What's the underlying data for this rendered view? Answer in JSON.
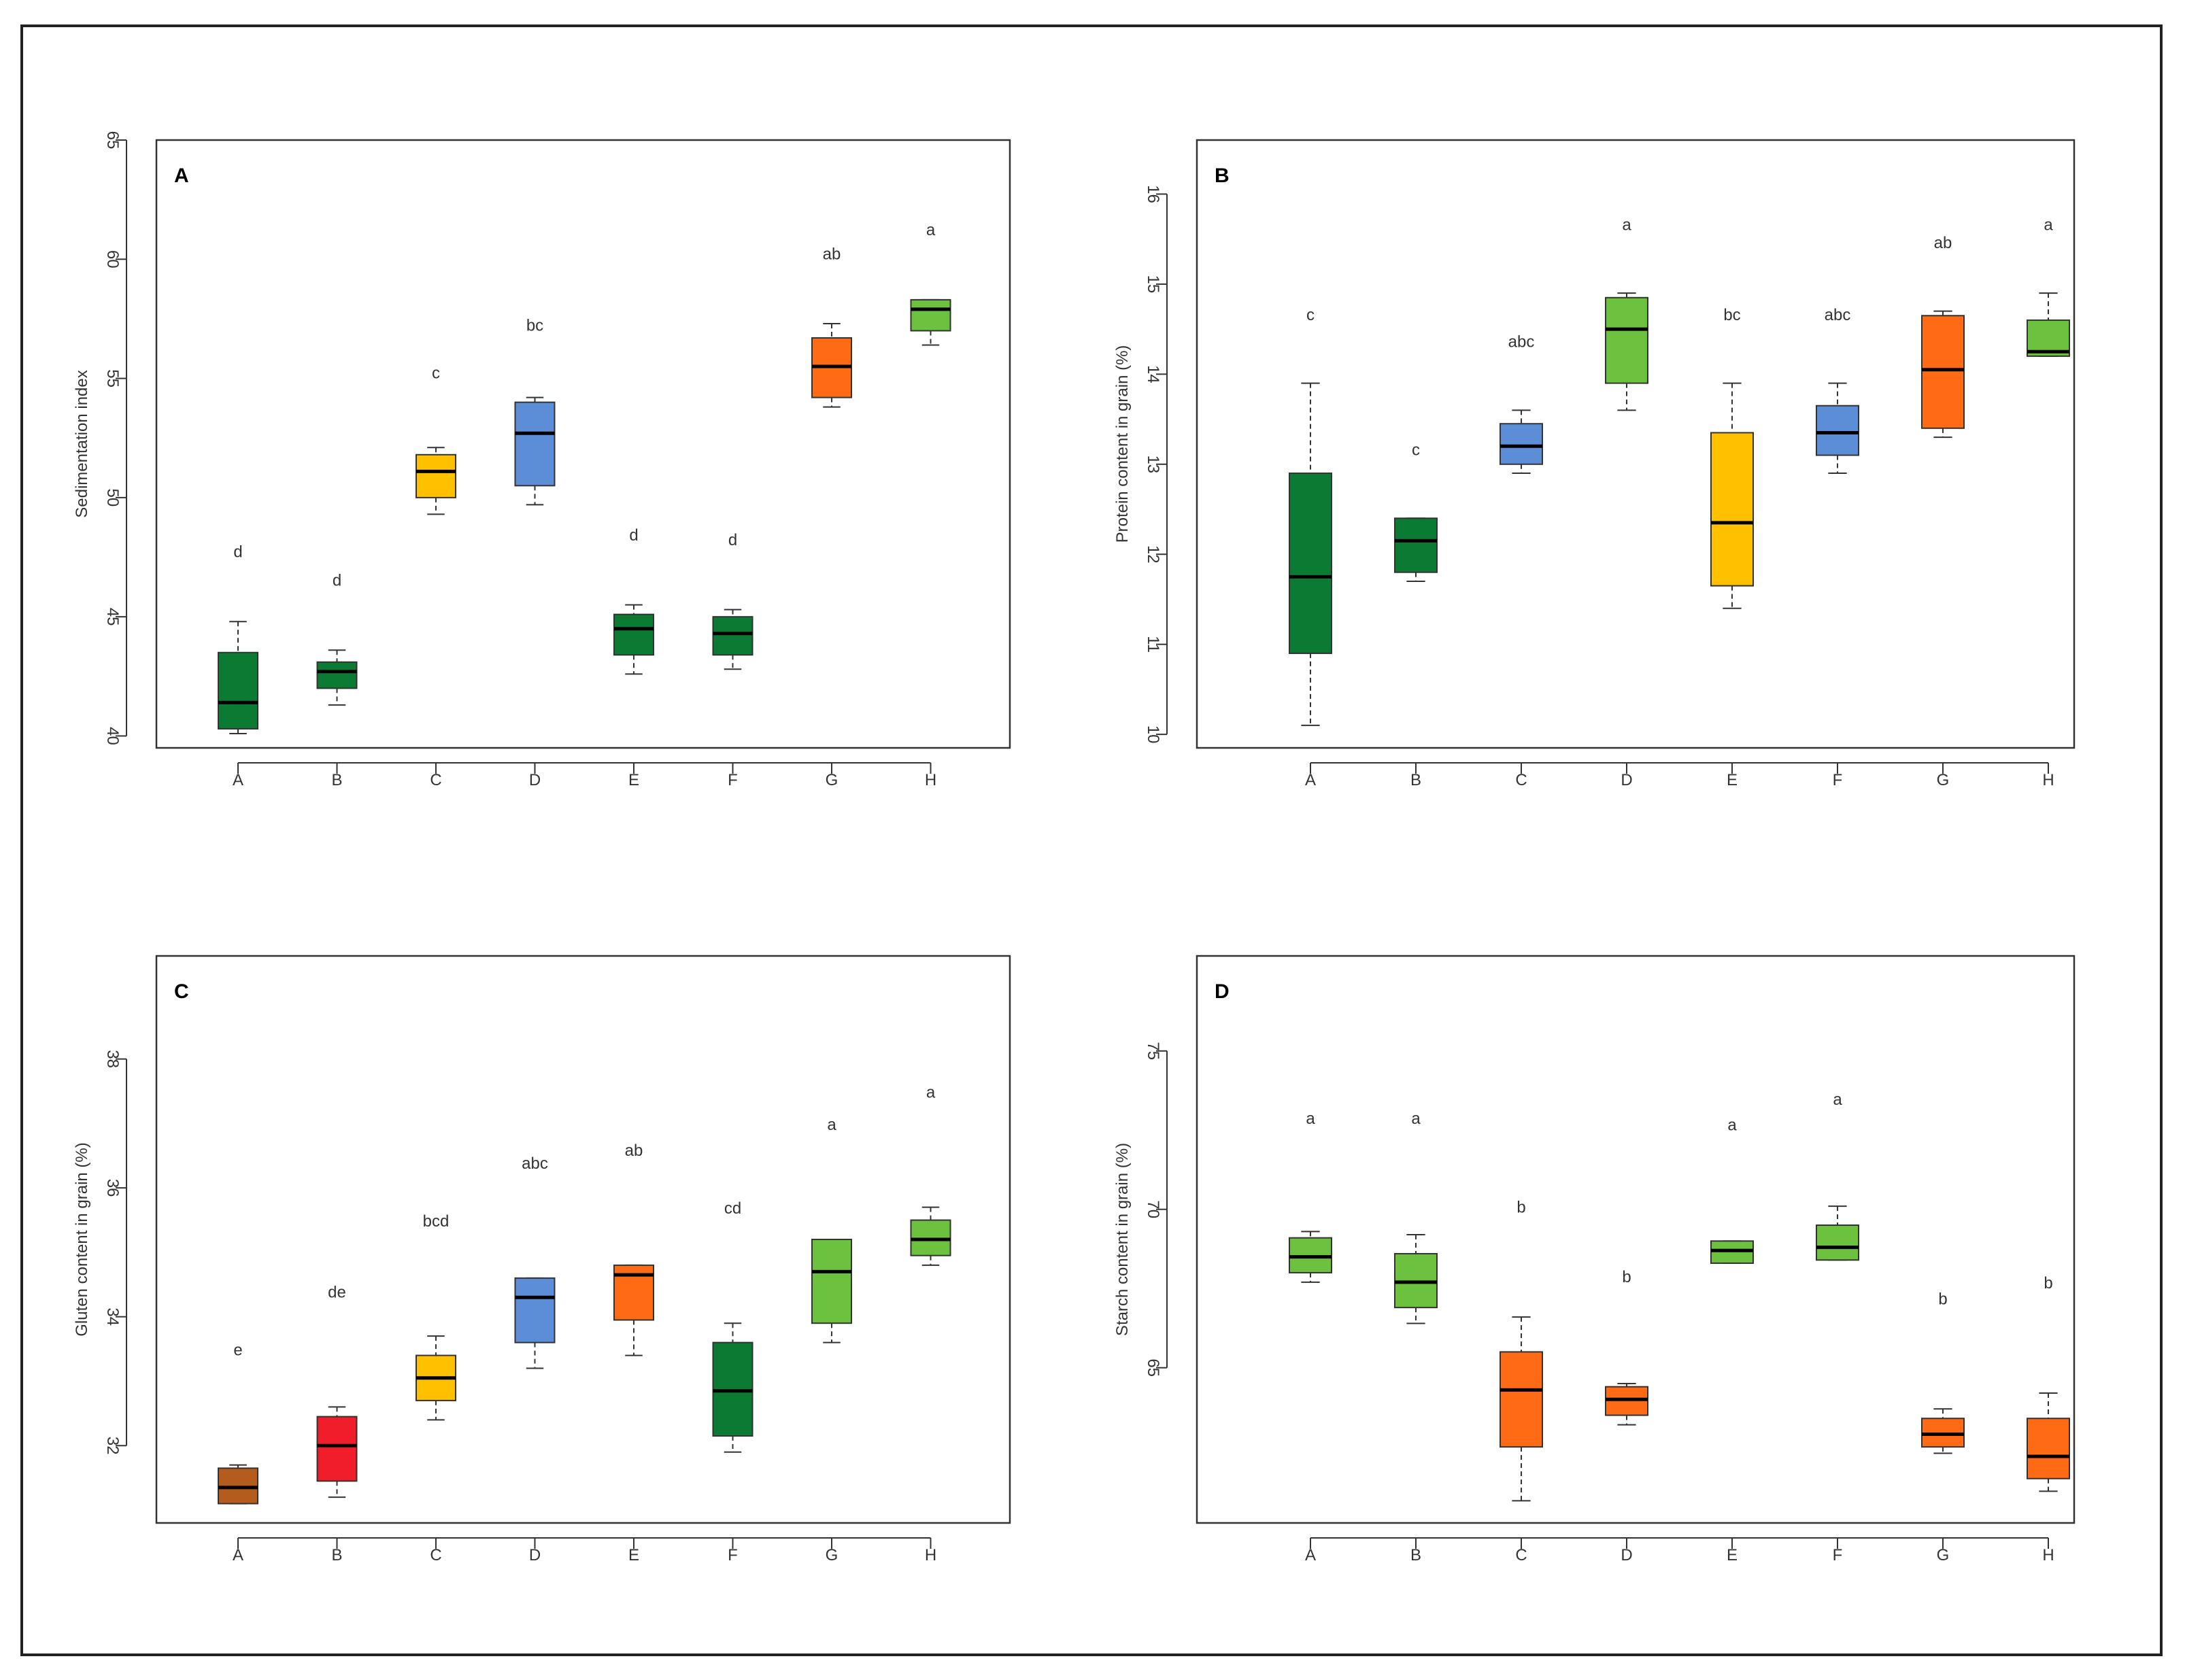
{
  "colors": {
    "dark_green": "#0b7a32",
    "light_green": "#6cc13e",
    "yellow": "#ffc000",
    "blue": "#5b8ed6",
    "orange": "#ff6a14",
    "red": "#f21d2a",
    "brown": "#b35c1e"
  },
  "chart_data": [
    {
      "type": "box",
      "panel_label": "A",
      "ylabel": "Sedimentation index",
      "xlabel": "",
      "ylim": [
        39.5,
        65
      ],
      "yticks": [
        40,
        45,
        50,
        55,
        60,
        65
      ],
      "categories": [
        "A",
        "B",
        "C",
        "D",
        "E",
        "F",
        "G",
        "H"
      ],
      "boxes": [
        {
          "min": 40.1,
          "q1": 40.3,
          "median": 41.4,
          "q3": 43.5,
          "max": 44.8,
          "color": "dark_green",
          "letter": "d"
        },
        {
          "min": 41.3,
          "q1": 42.0,
          "median": 42.7,
          "q3": 43.1,
          "max": 43.6,
          "color": "dark_green",
          "letter": "d"
        },
        {
          "min": 49.3,
          "q1": 50.0,
          "median": 51.1,
          "q3": 51.8,
          "max": 52.1,
          "color": "yellow",
          "letter": "c"
        },
        {
          "min": 49.7,
          "q1": 50.5,
          "median": 52.7,
          "q3": 54.0,
          "max": 54.2,
          "color": "blue",
          "letter": "bc"
        },
        {
          "min": 42.6,
          "q1": 43.4,
          "median": 44.5,
          "q3": 45.1,
          "max": 45.5,
          "color": "dark_green",
          "letter": "d"
        },
        {
          "min": 42.8,
          "q1": 43.4,
          "median": 44.3,
          "q3": 45.0,
          "max": 45.3,
          "color": "dark_green",
          "letter": "d"
        },
        {
          "min": 53.8,
          "q1": 54.2,
          "median": 55.5,
          "q3": 56.7,
          "max": 57.3,
          "color": "orange",
          "letter": "ab"
        },
        {
          "min": 56.4,
          "q1": 57.0,
          "median": 57.9,
          "q3": 58.3,
          "max": 58.3,
          "color": "light_green",
          "letter": "a"
        }
      ],
      "letter_y": [
        47.5,
        46.3,
        55.0,
        57.0,
        48.2,
        48.0,
        60.0,
        61.0
      ]
    },
    {
      "type": "box",
      "panel_label": "B",
      "ylabel": "Protein content in grain (%)",
      "xlabel": "",
      "ylim": [
        9.85,
        16.6
      ],
      "yticks": [
        10,
        11,
        12,
        13,
        14,
        15,
        16
      ],
      "categories": [
        "A",
        "B",
        "C",
        "D",
        "E",
        "F",
        "G",
        "H"
      ],
      "boxes": [
        {
          "min": 10.1,
          "q1": 10.9,
          "median": 11.75,
          "q3": 12.9,
          "max": 13.9,
          "color": "dark_green",
          "letter": "c"
        },
        {
          "min": 11.7,
          "q1": 11.8,
          "median": 12.15,
          "q3": 12.4,
          "max": 12.4,
          "color": "dark_green",
          "letter": "c"
        },
        {
          "min": 12.9,
          "q1": 13.0,
          "median": 13.2,
          "q3": 13.45,
          "max": 13.6,
          "color": "blue",
          "letter": "abc"
        },
        {
          "min": 13.6,
          "q1": 13.9,
          "median": 14.5,
          "q3": 14.85,
          "max": 14.9,
          "color": "light_green",
          "letter": "a"
        },
        {
          "min": 11.4,
          "q1": 11.65,
          "median": 12.35,
          "q3": 13.35,
          "max": 13.9,
          "color": "yellow",
          "letter": "bc"
        },
        {
          "min": 12.9,
          "q1": 13.1,
          "median": 13.35,
          "q3": 13.65,
          "max": 13.9,
          "color": "blue",
          "letter": "abc"
        },
        {
          "min": 13.3,
          "q1": 13.4,
          "median": 14.05,
          "q3": 14.65,
          "max": 14.7,
          "color": "orange",
          "letter": "ab"
        },
        {
          "min": 14.2,
          "q1": 14.2,
          "median": 14.25,
          "q3": 14.6,
          "max": 14.9,
          "color": "light_green",
          "letter": "a"
        }
      ],
      "letter_y": [
        14.6,
        13.1,
        14.3,
        15.6,
        14.6,
        14.6,
        15.4,
        15.6
      ]
    },
    {
      "type": "box",
      "panel_label": "C",
      "ylabel": "Gluten content in grain (%)",
      "xlabel": "",
      "ylim": [
        30.8,
        39.6
      ],
      "yticks": [
        32,
        34,
        36,
        38
      ],
      "categories": [
        "A",
        "B",
        "C",
        "D",
        "E",
        "F",
        "G",
        "H"
      ],
      "boxes": [
        {
          "min": 31.1,
          "q1": 31.1,
          "median": 31.35,
          "q3": 31.65,
          "max": 31.7,
          "color": "brown",
          "letter": "e"
        },
        {
          "min": 31.2,
          "q1": 31.45,
          "median": 32.0,
          "q3": 32.45,
          "max": 32.6,
          "color": "red",
          "letter": "de"
        },
        {
          "min": 32.4,
          "q1": 32.7,
          "median": 33.05,
          "q3": 33.4,
          "max": 33.7,
          "color": "yellow",
          "letter": "bcd"
        },
        {
          "min": 33.2,
          "q1": 33.6,
          "median": 34.3,
          "q3": 34.6,
          "max": 34.6,
          "color": "blue",
          "letter": "abc"
        },
        {
          "min": 33.4,
          "q1": 33.95,
          "median": 34.65,
          "q3": 34.8,
          "max": 34.8,
          "color": "orange",
          "letter": "ab"
        },
        {
          "min": 31.9,
          "q1": 32.15,
          "median": 32.85,
          "q3": 33.6,
          "max": 33.9,
          "color": "dark_green",
          "letter": "cd"
        },
        {
          "min": 33.6,
          "q1": 33.9,
          "median": 34.7,
          "q3": 35.2,
          "max": 35.2,
          "color": "light_green",
          "letter": "a"
        },
        {
          "min": 34.8,
          "q1": 34.95,
          "median": 35.2,
          "q3": 35.5,
          "max": 35.7,
          "color": "light_green",
          "letter": "a"
        }
      ],
      "letter_y": [
        33.4,
        34.3,
        35.4,
        36.3,
        36.5,
        35.6,
        36.9,
        37.4
      ]
    },
    {
      "type": "box",
      "panel_label": "D",
      "ylabel": "Starch content in grain (%)",
      "xlabel": "",
      "ylim": [
        60.1,
        78.0
      ],
      "yticks": [
        65,
        70,
        75
      ],
      "categories": [
        "A",
        "B",
        "C",
        "D",
        "E",
        "F",
        "G",
        "H"
      ],
      "boxes": [
        {
          "min": 67.7,
          "q1": 68.0,
          "median": 68.5,
          "q3": 69.1,
          "max": 69.3,
          "color": "light_green",
          "letter": "a"
        },
        {
          "min": 66.4,
          "q1": 66.9,
          "median": 67.7,
          "q3": 68.6,
          "max": 69.2,
          "color": "light_green",
          "letter": "a"
        },
        {
          "min": 60.8,
          "q1": 62.5,
          "median": 64.3,
          "q3": 65.5,
          "max": 66.6,
          "color": "orange",
          "letter": "b"
        },
        {
          "min": 63.2,
          "q1": 63.5,
          "median": 64.0,
          "q3": 64.4,
          "max": 64.5,
          "color": "orange",
          "letter": "b"
        },
        {
          "min": 68.3,
          "q1": 68.3,
          "median": 68.7,
          "q3": 69.0,
          "max": 69.0,
          "color": "light_green",
          "letter": "a"
        },
        {
          "min": 68.4,
          "q1": 68.4,
          "median": 68.8,
          "q3": 69.5,
          "max": 70.1,
          "color": "light_green",
          "letter": "a"
        },
        {
          "min": 62.3,
          "q1": 62.5,
          "median": 62.9,
          "q3": 63.4,
          "max": 63.7,
          "color": "orange",
          "letter": "b"
        },
        {
          "min": 61.1,
          "q1": 61.5,
          "median": 62.2,
          "q3": 63.4,
          "max": 64.2,
          "color": "orange",
          "letter": "b"
        }
      ],
      "letter_y": [
        72.7,
        72.7,
        69.9,
        67.7,
        72.5,
        73.3,
        67.0,
        67.5
      ]
    }
  ]
}
